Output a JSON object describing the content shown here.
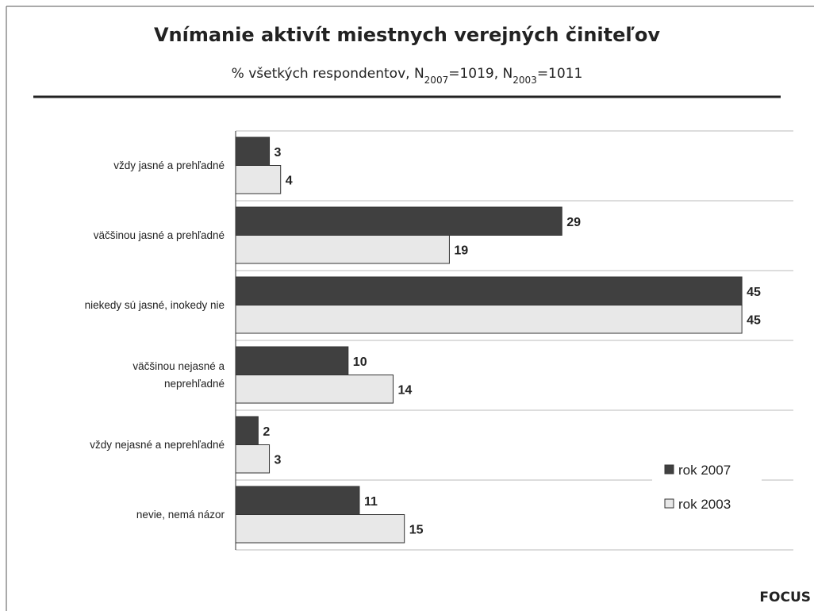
{
  "chart_data": {
    "type": "hbar",
    "title": "Vnímanie aktivít miestnych verejných činiteľov",
    "subtitle": [
      {
        "text": "% všetkých respondentov, N"
      },
      {
        "text": "2007",
        "sub": true
      },
      {
        "text": "=1019, N"
      },
      {
        "text": "2003",
        "sub": true
      },
      {
        "text": "=1011"
      }
    ],
    "categories": [
      "vždy jasné a prehľadné",
      "väčšinou jasné a prehľadné",
      "niekedy sú jasné, inokedy nie",
      "väčšinou nejasné a\nneprehľadné",
      "vždy nejasné a neprehľadné",
      "nevie, nemá názor"
    ],
    "series": [
      {
        "name": "rok 2007",
        "color": "#404040",
        "values": [
          3,
          29,
          45,
          10,
          2,
          11
        ]
      },
      {
        "name": "rok 2003",
        "color": "#e8e8e8",
        "values": [
          4,
          19,
          45,
          14,
          3,
          15
        ]
      }
    ],
    "xlim": [
      0,
      50
    ],
    "legend": "lower-right",
    "source_label": "FOCUS"
  }
}
